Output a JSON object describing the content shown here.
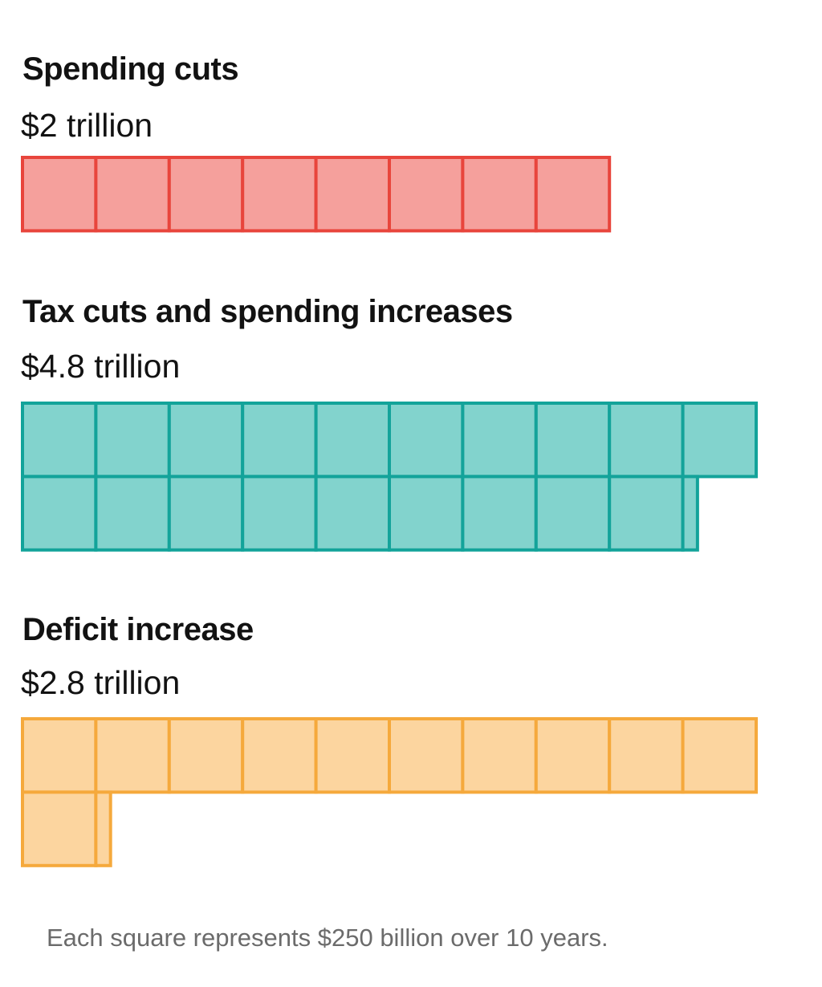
{
  "chart_data": {
    "type": "waffle",
    "unit_value_billion": 250,
    "squares_per_row": 10,
    "groups": [
      {
        "id": "spending-cuts",
        "title": "Spending cuts",
        "value_label": "$2 trillion",
        "value_trillion": 2.0,
        "squares": 8,
        "fill": "#f5a09c",
        "stroke": "#e8453c"
      },
      {
        "id": "tax-cuts",
        "title": "Tax cuts and spending increases",
        "value_label": "$4.8 trillion",
        "value_trillion": 4.8,
        "squares": 19.2,
        "fill": "#82d3cd",
        "stroke": "#13a39a"
      },
      {
        "id": "deficit-increase",
        "title": "Deficit increase",
        "value_label": "$2.8 trillion",
        "value_trillion": 2.8,
        "squares": 11.2,
        "fill": "#fcd59f",
        "stroke": "#f5a93c"
      }
    ],
    "footnote": "Each square represents $250 billion over 10 years."
  }
}
